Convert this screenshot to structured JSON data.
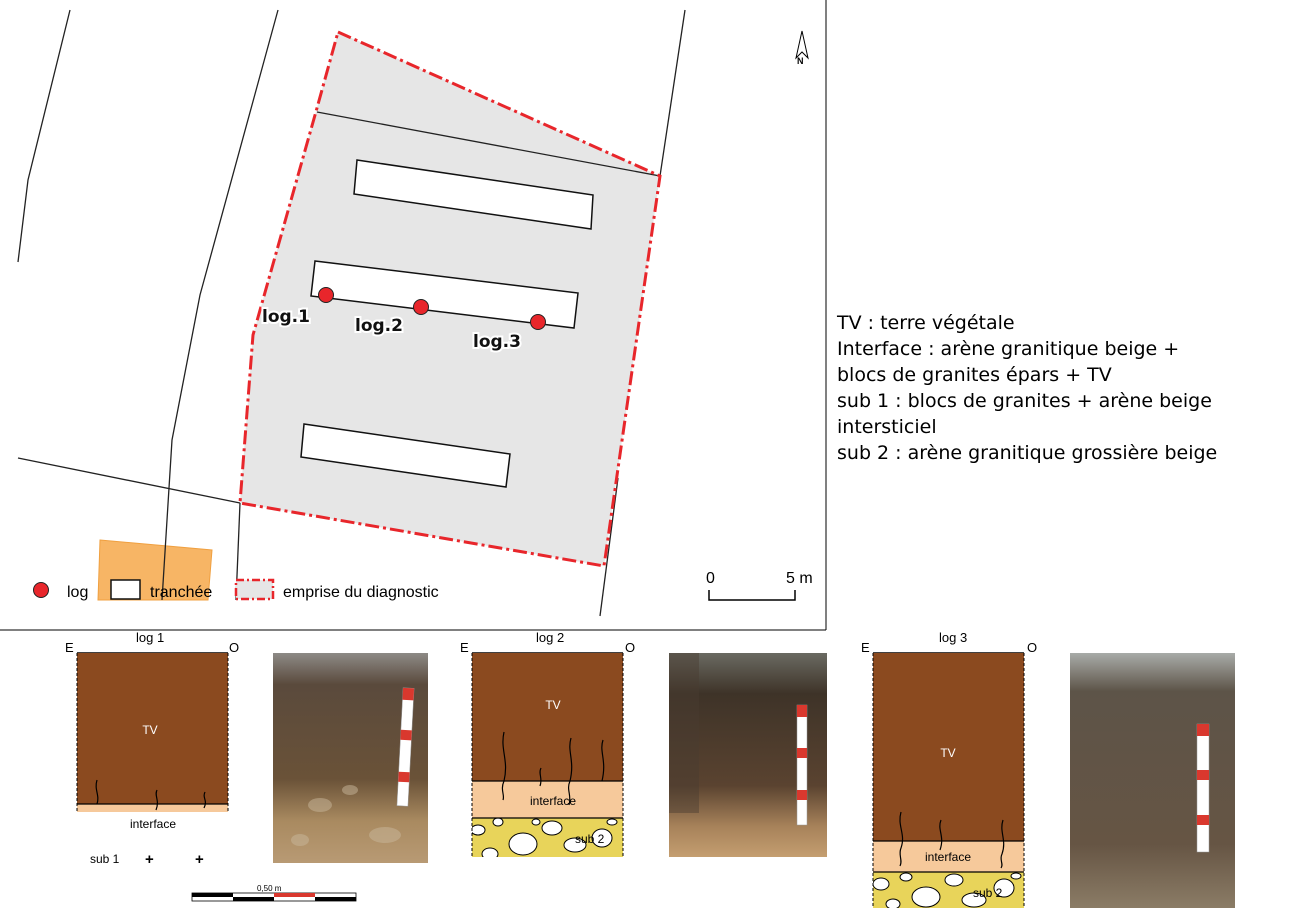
{
  "map": {
    "north": "N",
    "log_labels": [
      "log.1",
      "log.2",
      "log.3"
    ],
    "legend": {
      "log": "log",
      "trench": "tranchée",
      "extent": "emprise du diagnostic"
    },
    "scale": {
      "zero": "0",
      "end": "5 m"
    },
    "colors": {
      "extent": "#e8262b",
      "extent_fill": "#e6e6e6",
      "log_point": "#e8262b",
      "parcel_orange": "#f7b565"
    }
  },
  "description_lines": [
    "TV : terre végétale",
    "Interface : arène granitique beige +",
    "blocs de granites épars + TV",
    "sub 1 : blocs de granites + arène beige",
    "intersticiel",
    "sub 2 : arène granitique grossière beige"
  ],
  "sections": {
    "east": "E",
    "west": "O",
    "logs": [
      {
        "title": "log 1",
        "layers": [
          "TV",
          "interface",
          "sub 1"
        ]
      },
      {
        "title": "log 2",
        "layers": [
          "TV",
          "interface",
          "sub 2"
        ]
      },
      {
        "title": "log 3",
        "layers": [
          "TV",
          "interface",
          "sub 2"
        ]
      }
    ],
    "scale_label": "0,50 m",
    "colors": {
      "tv": "#8b4a1f",
      "interface": "#f6c99b",
      "sub1": "#f2f2f2",
      "sub2": "#e8d45a"
    }
  }
}
